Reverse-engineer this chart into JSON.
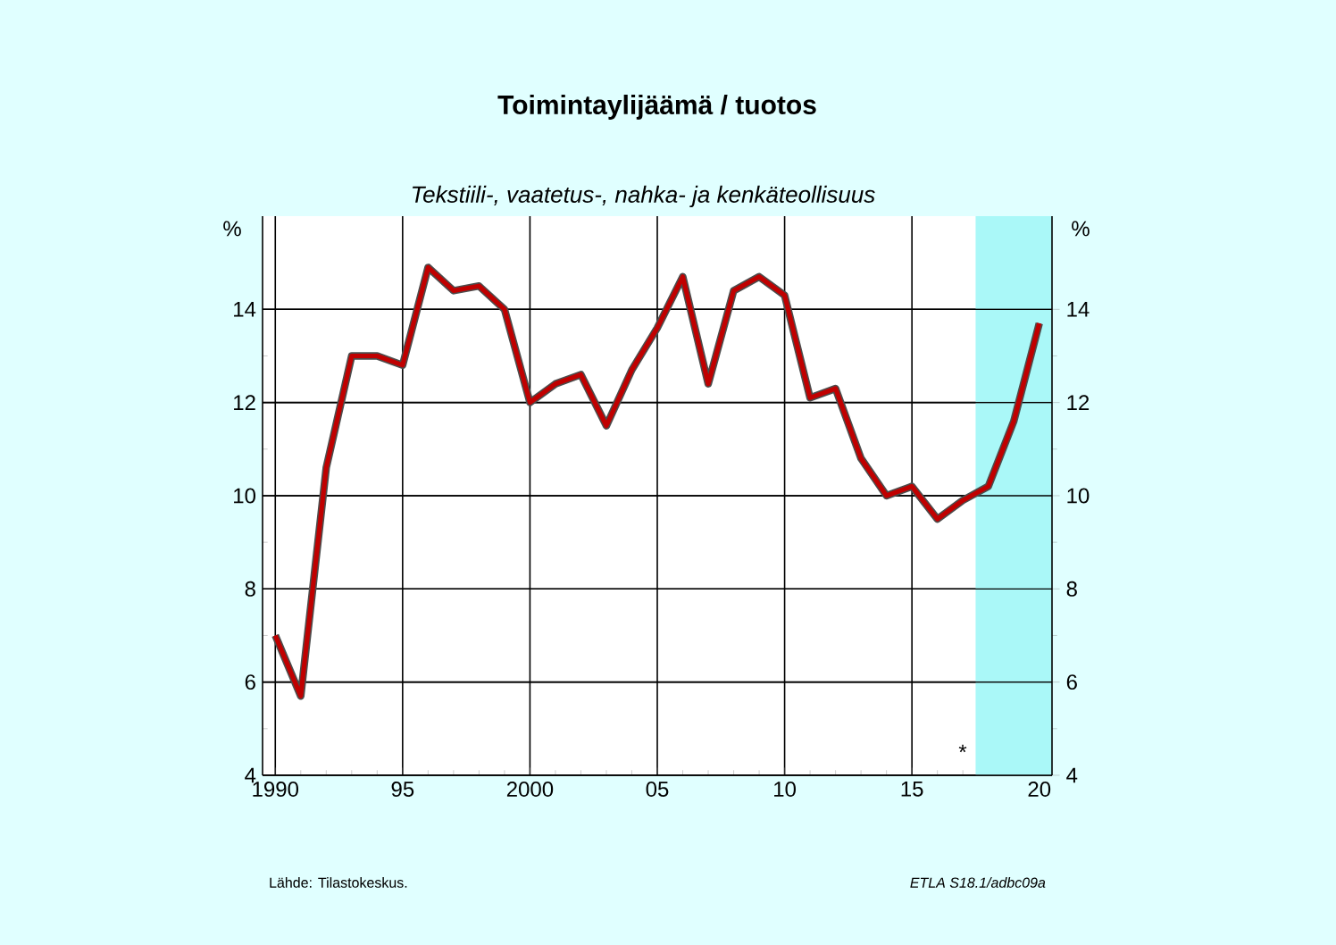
{
  "chart_data": {
    "type": "line",
    "title": "Toimintaylijäämä / tuotos",
    "subtitle": "Tekstiili-, vaatetus-, nahka- ja kenkäteollisuus",
    "ylabel": "%",
    "y2label": "%",
    "x": [
      1990,
      1991,
      1992,
      1993,
      1994,
      1995,
      1996,
      1997,
      1998,
      1999,
      2000,
      2001,
      2002,
      2003,
      2004,
      2005,
      2006,
      2007,
      2008,
      2009,
      2010,
      2011,
      2012,
      2013,
      2014,
      2015,
      2016,
      2017,
      2018,
      2019,
      2020
    ],
    "series": [
      {
        "color": "#c00000",
        "values": [
          7.0,
          5.7,
          10.6,
          13.0,
          13.0,
          12.8,
          14.9,
          14.4,
          14.5,
          14.0,
          12.0,
          12.4,
          12.6,
          11.5,
          12.7,
          13.6,
          14.7,
          12.4,
          14.4,
          14.7,
          14.3,
          12.1,
          12.3,
          10.8,
          10.0,
          10.2,
          9.5,
          9.9,
          10.2,
          11.6,
          13.7
        ]
      }
    ],
    "xlim": [
      1989.5,
      2020.5
    ],
    "ylim": [
      4,
      16
    ],
    "y2lim": [
      4,
      16
    ],
    "xticks": [
      {
        "value": 1990,
        "label": "1990"
      },
      {
        "value": 1995,
        "label": "95"
      },
      {
        "value": 2000,
        "label": "2000"
      },
      {
        "value": 2005,
        "label": "05"
      },
      {
        "value": 2010,
        "label": "10"
      },
      {
        "value": 2015,
        "label": "15"
      },
      {
        "value": 2020,
        "label": "20"
      }
    ],
    "yticks": [
      4,
      6,
      8,
      10,
      12,
      14
    ],
    "y2ticks": [
      4,
      6,
      8,
      10,
      12,
      14
    ],
    "bands": [
      {
        "axis": "x",
        "from": 2017.5,
        "to": 2020.5,
        "color": "#aaf8f8"
      }
    ],
    "annotations": [
      "*",
      "Lähde:    Tilastokeskus.",
      "ETLA S18.1/adbc09a"
    ],
    "grid": true,
    "line_style": "solid"
  }
}
